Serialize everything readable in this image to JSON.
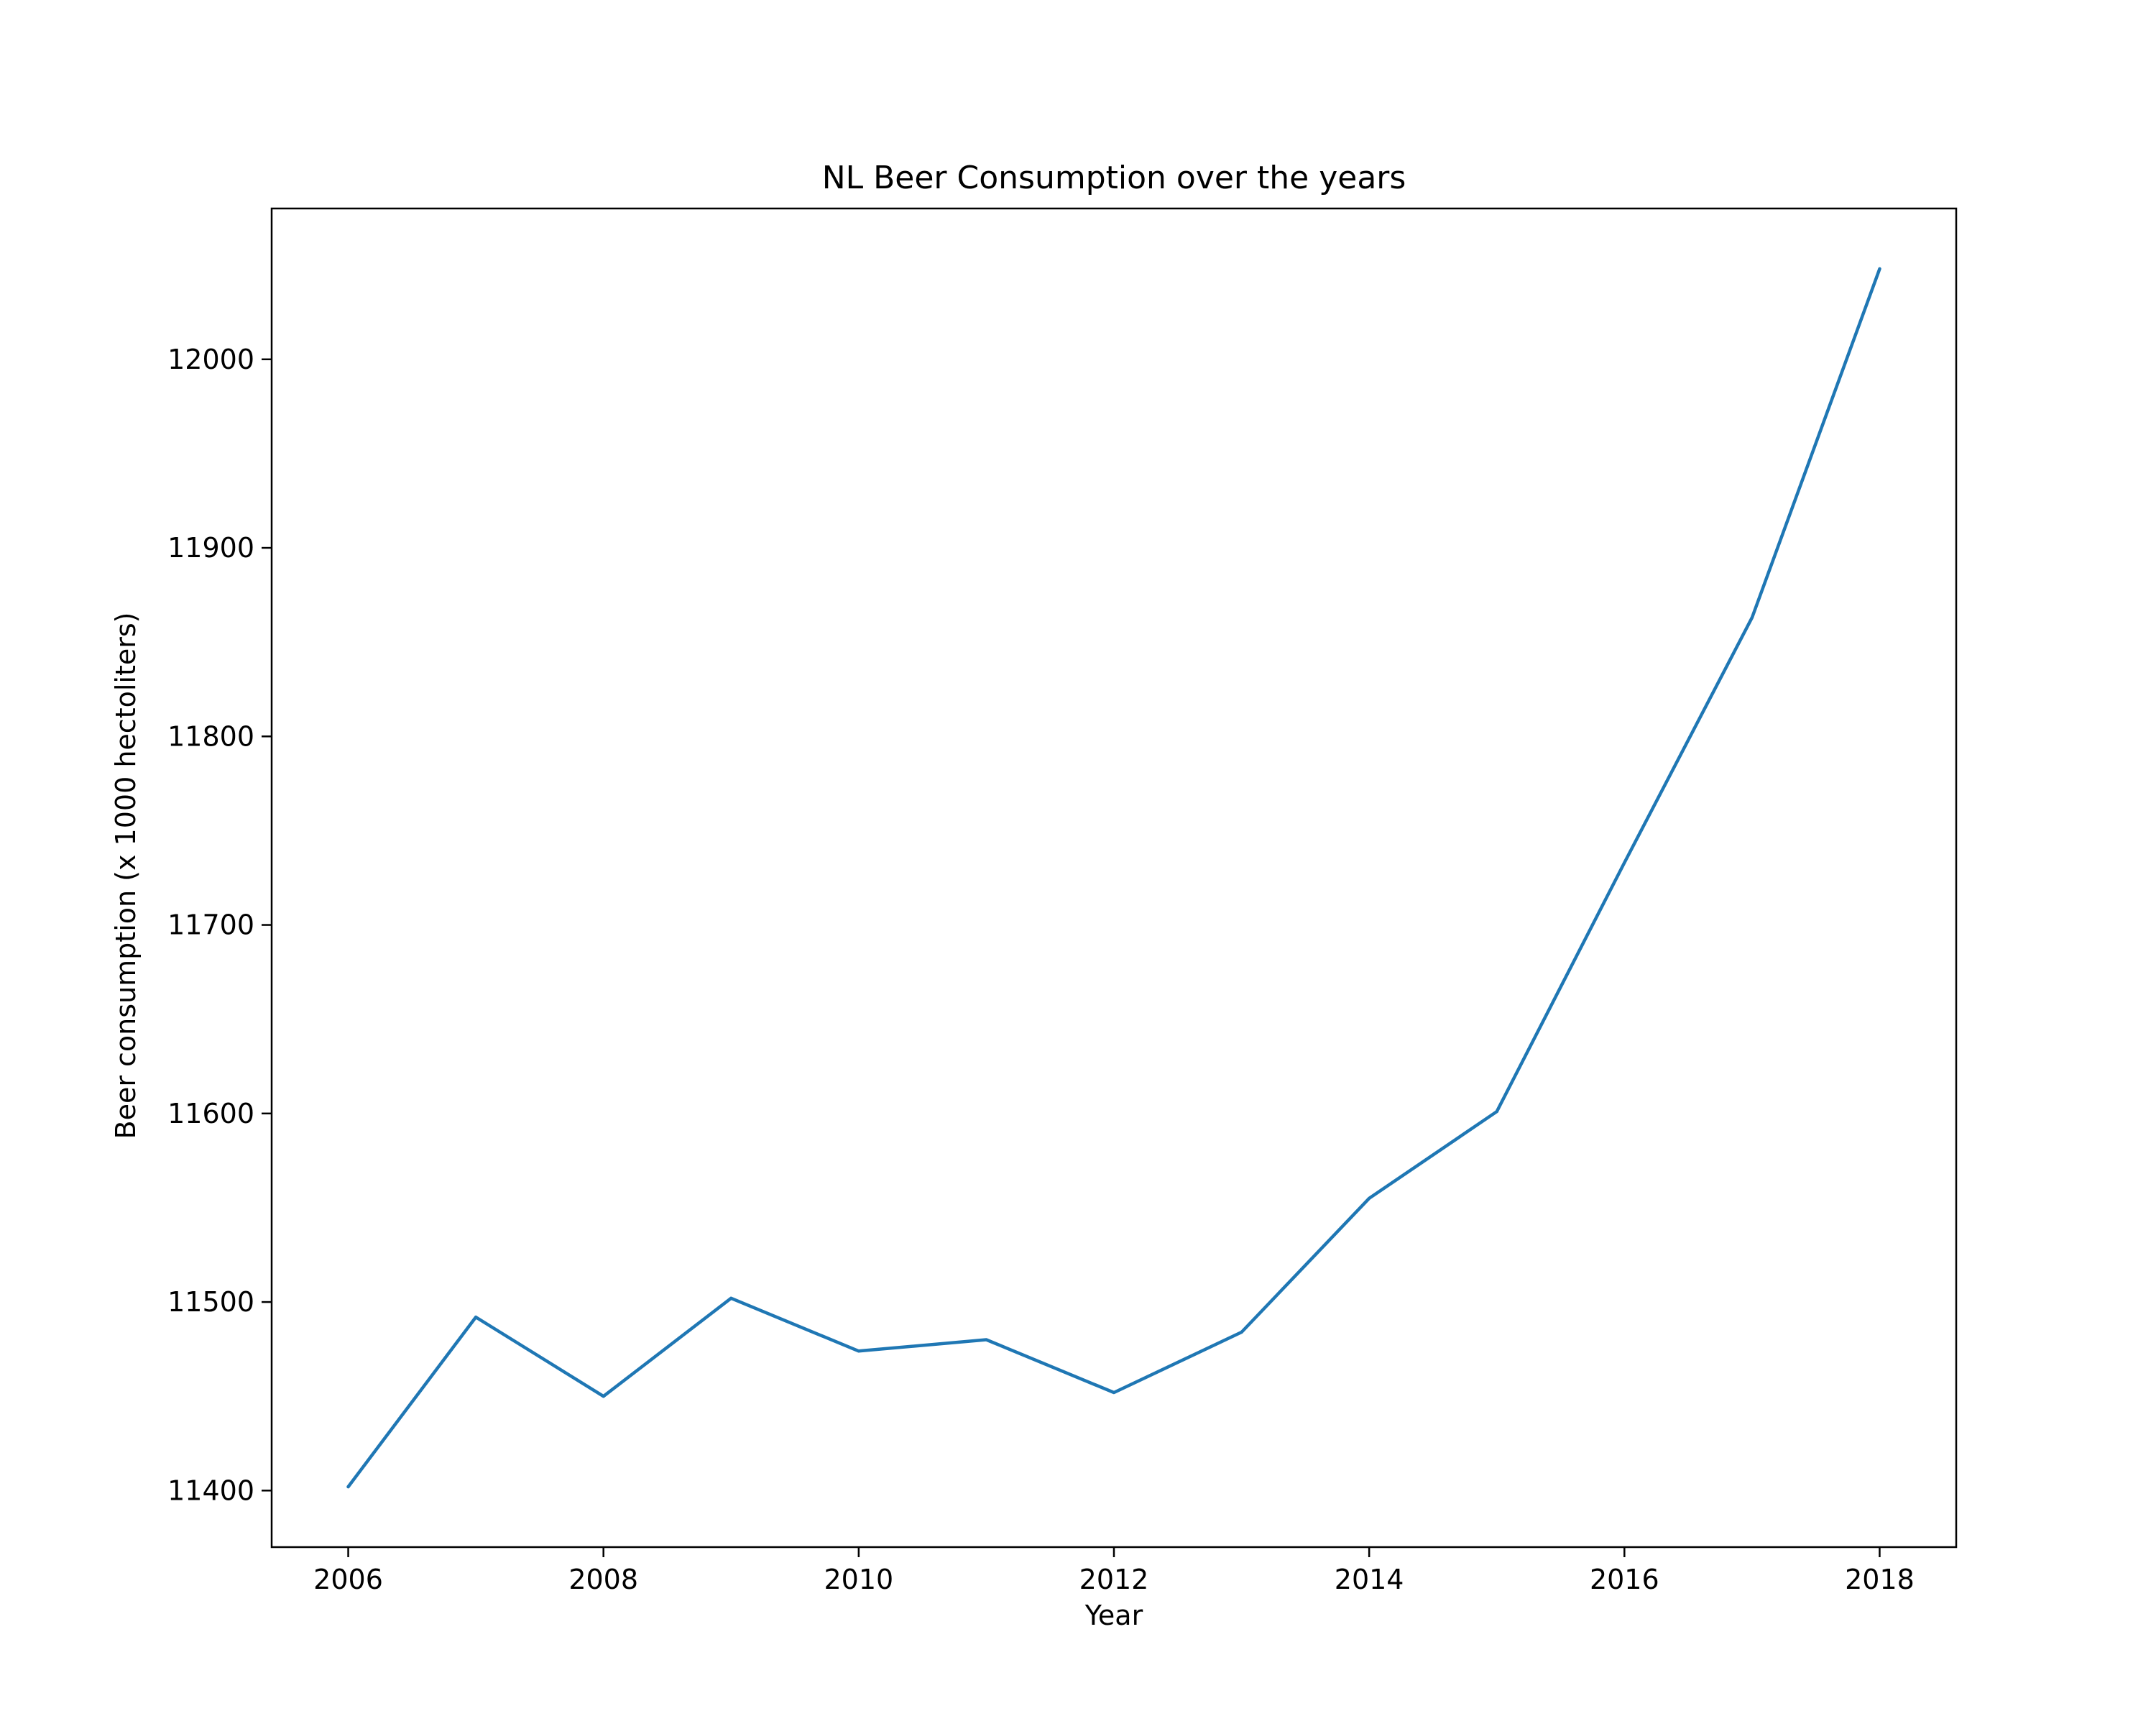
{
  "chart_data": {
    "type": "line",
    "title": "NL Beer Consumption over the years",
    "xlabel": "Year",
    "ylabel": "Beer consumption (x 1000 hectoliters)",
    "xlim": [
      2005.4,
      2018.6
    ],
    "ylim": [
      11370,
      12080
    ],
    "xticks": [
      2006,
      2008,
      2010,
      2012,
      2014,
      2016,
      2018
    ],
    "yticks": [
      11400,
      11500,
      11600,
      11700,
      11800,
      11900,
      12000
    ],
    "grid": false,
    "legend": "none",
    "series": [
      {
        "color": "#1f77b4",
        "x": [
          2006,
          2007,
          2008,
          2009,
          2010,
          2011,
          2012,
          2013,
          2014,
          2015,
          2016,
          2017,
          2018
        ],
        "y": [
          11402,
          11492,
          11450,
          11502,
          11474,
          11480,
          11452,
          11484,
          11555,
          11601,
          11733,
          11863,
          12048
        ]
      }
    ]
  }
}
